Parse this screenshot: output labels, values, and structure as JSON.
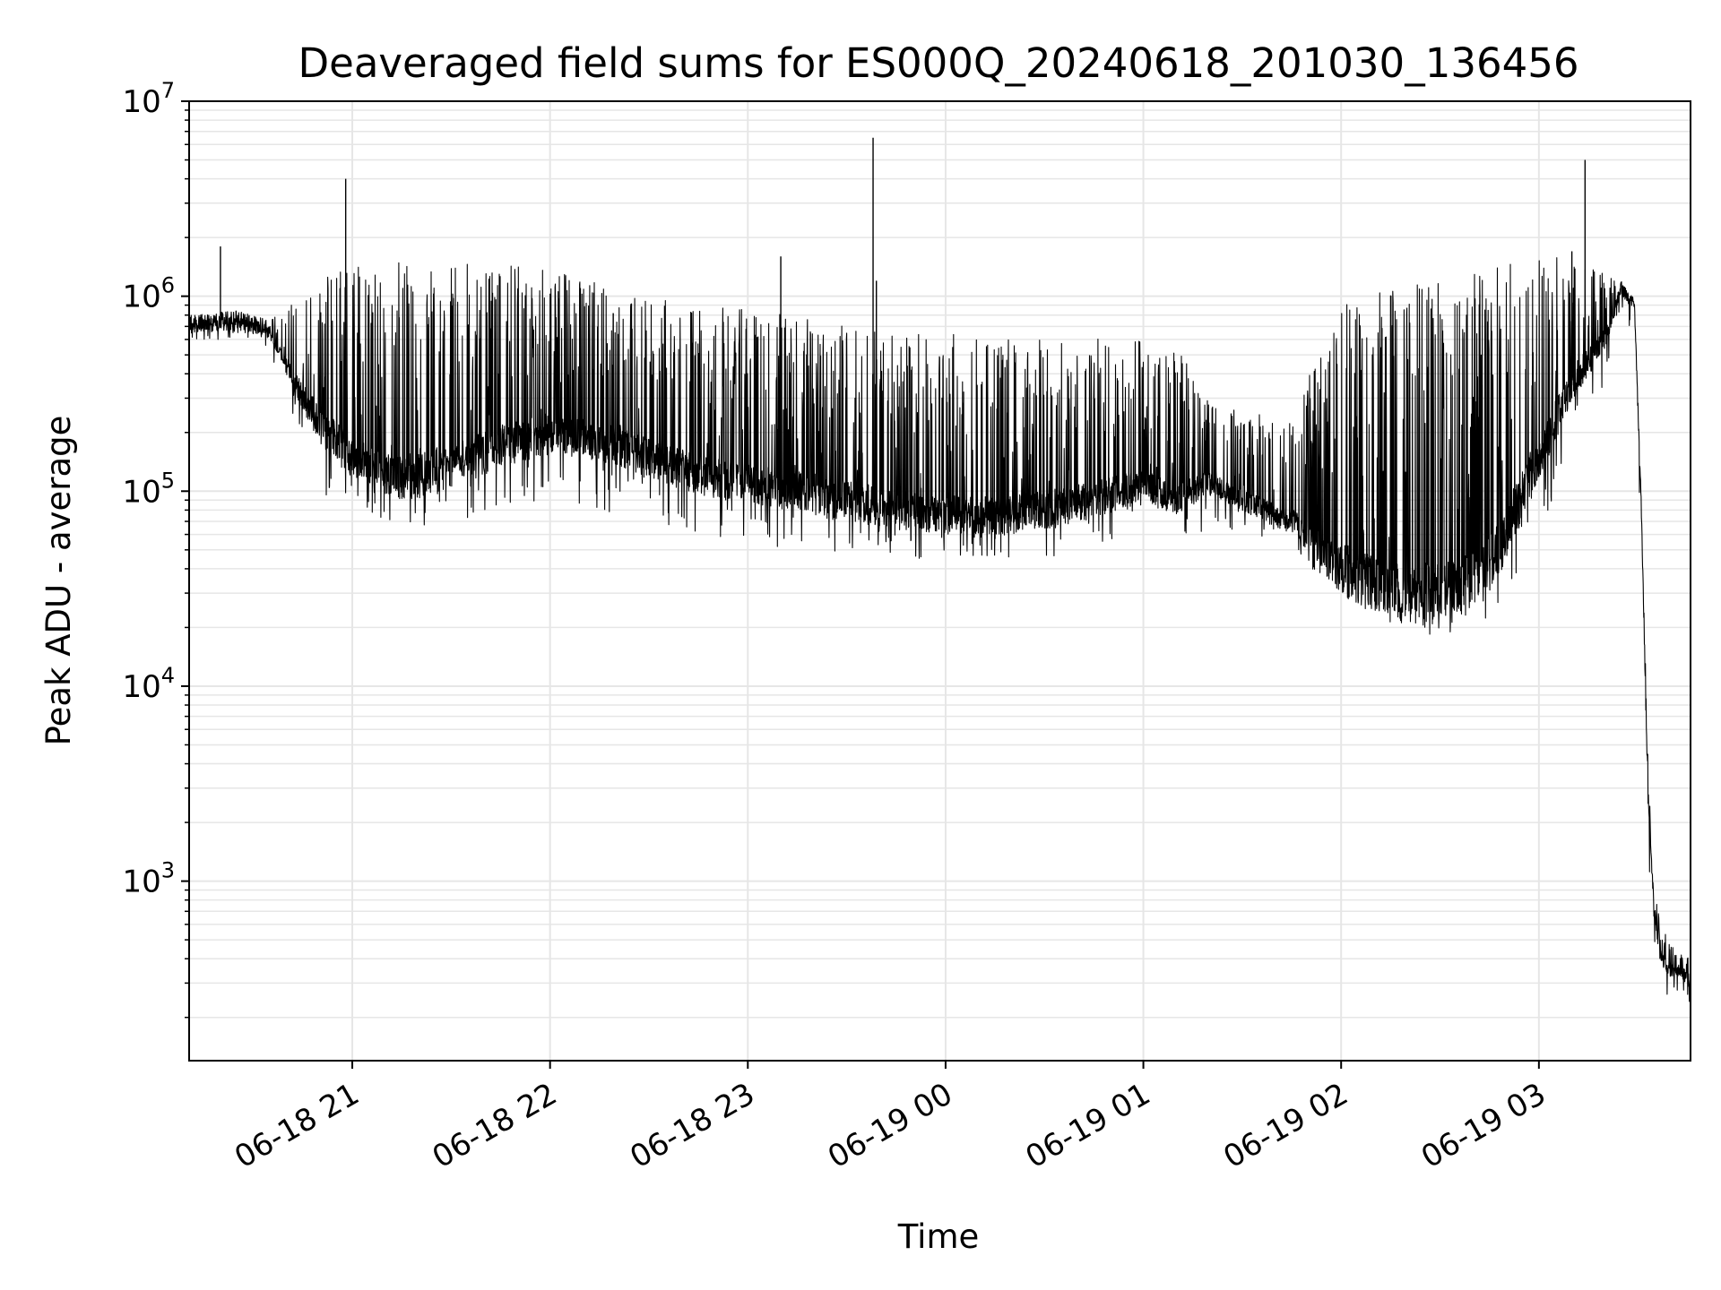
{
  "chart_data": {
    "type": "line",
    "title": "Deaveraged field sums for ES000Q_20240618_201030_136456",
    "xlabel": "Time",
    "ylabel": "Peak ADU - average",
    "yscale": "log",
    "ylim": [
      120,
      10000000
    ],
    "xlim": [
      "2024-06-18T20:10:30",
      "2024-06-19T03:46:00"
    ],
    "grid": "major and minor, both axes",
    "line_color": "#000000",
    "grid_color": "#e6e6e6",
    "x_ticks": [
      {
        "value": "2024-06-18T21:00:00",
        "label": "06-18 21"
      },
      {
        "value": "2024-06-18T22:00:00",
        "label": "06-18 22"
      },
      {
        "value": "2024-06-18T23:00:00",
        "label": "06-18 23"
      },
      {
        "value": "2024-06-19T00:00:00",
        "label": "06-19 00"
      },
      {
        "value": "2024-06-19T01:00:00",
        "label": "06-19 01"
      },
      {
        "value": "2024-06-19T02:00:00",
        "label": "06-19 02"
      },
      {
        "value": "2024-06-19T03:00:00",
        "label": "06-19 03"
      }
    ],
    "y_ticks": [
      {
        "value": 1000,
        "base": "10",
        "exp": "3"
      },
      {
        "value": 10000,
        "base": "10",
        "exp": "4"
      },
      {
        "value": 100000,
        "base": "10",
        "exp": "5"
      },
      {
        "value": 1000000,
        "base": "10",
        "exp": "6"
      },
      {
        "value": 10000000,
        "base": "10",
        "exp": "7"
      }
    ],
    "series": [
      {
        "envelope": {
          "x": [
            "2024-06-18T20:10:30",
            "2024-06-18T20:25:00",
            "2024-06-18T20:35:00",
            "2024-06-18T20:45:00",
            "2024-06-18T20:52:00",
            "2024-06-18T21:00:00",
            "2024-06-18T21:10:00",
            "2024-06-18T21:20:00",
            "2024-06-18T21:30:00",
            "2024-06-18T21:45:00",
            "2024-06-18T22:00:00",
            "2024-06-18T22:15:00",
            "2024-06-18T22:30:00",
            "2024-06-18T22:45:00",
            "2024-06-18T23:00:00",
            "2024-06-18T23:15:00",
            "2024-06-18T23:30:00",
            "2024-06-18T23:45:00",
            "2024-06-19T00:00:00",
            "2024-06-19T00:15:00",
            "2024-06-19T00:30:00",
            "2024-06-19T00:45:00",
            "2024-06-19T00:55:00",
            "2024-06-19T01:00:00",
            "2024-06-19T01:10:00",
            "2024-06-19T01:20:00",
            "2024-06-19T01:30:00",
            "2024-06-19T01:45:00",
            "2024-06-19T02:00:00",
            "2024-06-19T02:15:00",
            "2024-06-19T02:30:00",
            "2024-06-19T02:45:00",
            "2024-06-19T03:00:00",
            "2024-06-19T03:10:00",
            "2024-06-19T03:20:00",
            "2024-06-19T03:25:00",
            "2024-06-19T03:29:00",
            "2024-06-19T03:31:00",
            "2024-06-19T03:33:00",
            "2024-06-19T03:35:00",
            "2024-06-19T03:37:00",
            "2024-06-19T03:40:00",
            "2024-06-19T03:43:00",
            "2024-06-19T03:46:00"
          ],
          "upper": [
            800000,
            850000,
            750000,
            1000000,
            1300000,
            1400000,
            1500000,
            1500000,
            1500000,
            1450000,
            1350000,
            1200000,
            1000000,
            900000,
            850000,
            800000,
            700000,
            650000,
            650000,
            600000,
            600000,
            600000,
            650000,
            650000,
            550000,
            300000,
            250000,
            250000,
            900000,
            1100000,
            1200000,
            1400000,
            1600000,
            1700000,
            1300000,
            1200000,
            900000,
            90000,
            5000,
            1000,
            600,
            500,
            450,
            400
          ],
          "baseline": [
            700000,
            720000,
            650000,
            300000,
            200000,
            150000,
            120000,
            120000,
            130000,
            170000,
            200000,
            180000,
            150000,
            120000,
            110000,
            100000,
            90000,
            80000,
            75000,
            75000,
            80000,
            90000,
            100000,
            110000,
            90000,
            110000,
            90000,
            70000,
            40000,
            30000,
            30000,
            40000,
            150000,
            350000,
            600000,
            1100000,
            900000,
            90000,
            3000,
            700,
            400,
            350,
            350,
            300
          ],
          "lower": [
            600000,
            600000,
            500000,
            150000,
            90000,
            80000,
            70000,
            65000,
            70000,
            80000,
            90000,
            80000,
            70000,
            60000,
            55000,
            50000,
            45000,
            45000,
            45000,
            45000,
            45000,
            50000,
            60000,
            80000,
            60000,
            60000,
            60000,
            45000,
            25000,
            20000,
            18000,
            22000,
            60000,
            150000,
            300000,
            800000,
            500000,
            25000,
            1500,
            400,
            250,
            250,
            250,
            240
          ]
        },
        "spikes": [
          {
            "x": "2024-06-18T20:20:00",
            "y": 1800000
          },
          {
            "x": "2024-06-18T20:58:00",
            "y": 4000000
          },
          {
            "x": "2024-06-18T23:38:00",
            "y": 6500000
          },
          {
            "x": "2024-06-18T23:10:00",
            "y": 1600000
          },
          {
            "x": "2024-06-19T03:14:00",
            "y": 5000000
          },
          {
            "x": "2024-06-19T03:10:00",
            "y": 1700000
          },
          {
            "x": "2024-06-18T23:39:00",
            "y": 1200000
          }
        ]
      }
    ]
  }
}
